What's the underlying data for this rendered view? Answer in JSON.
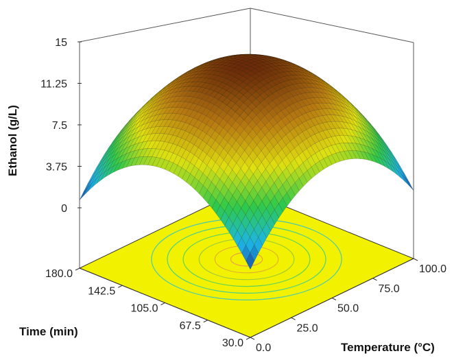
{
  "chart_data": {
    "type": "surface3d",
    "title": "",
    "z_axis": {
      "label": "Ethanol (g/L)",
      "ticks": [
        "15",
        "11.25",
        "7.5",
        "3.75",
        "0"
      ],
      "range": [
        0,
        15
      ]
    },
    "temperature_axis": {
      "label": "Temperature (°C)",
      "ticks": [
        "0.0",
        "25.0",
        "50.0",
        "75.0",
        "100.0"
      ],
      "range": [
        0,
        100
      ]
    },
    "time_axis": {
      "label": "Time (min)",
      "ticks": [
        "30.0",
        "67.5",
        "105.0",
        "142.5",
        "180.0"
      ],
      "range": [
        30,
        180
      ]
    },
    "surface": {
      "model": "quadratic",
      "peak_temperature": 50,
      "peak_time": 105,
      "peak_ethanol": 12.5,
      "ethanol_at_corner_min_min": 0.7,
      "ethanol_at_corner_max_max": 0.7,
      "ethanol_at_corner_t0_time180": 2.8,
      "ethanol_at_corner_t100_time30": 2.8
    },
    "contour_floor": {
      "present": true,
      "color": "#f2f200",
      "levels": 6
    },
    "colormap": [
      "#1a1a80",
      "#1db5e8",
      "#2fc94a",
      "#e0e010",
      "#b87a10",
      "#6a2a0a"
    ]
  }
}
